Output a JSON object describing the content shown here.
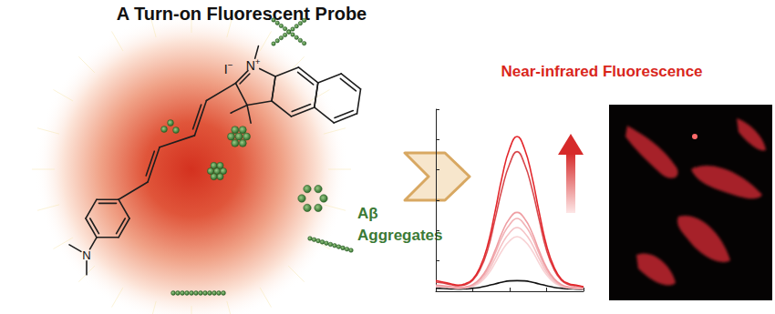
{
  "title": "A Turn-on Fluorescent Probe",
  "molecule": {
    "cation": "N",
    "cation_charge": "+",
    "counter_ion": "I",
    "counter_ion_charge": "−",
    "amine": "N"
  },
  "target_label": [
    "Aβ",
    "Aggregates"
  ],
  "output_label": "Near-infrared Fluorescence",
  "chart_data": {
    "type": "line",
    "x": [
      0,
      1,
      2,
      3,
      4,
      5,
      6,
      7,
      8,
      9,
      10,
      11,
      12,
      13,
      14,
      15,
      16,
      17,
      18,
      19,
      20
    ],
    "xlim": [
      0,
      20
    ],
    "xticks": [
      0,
      5,
      10,
      15,
      20
    ],
    "ylim": [
      0,
      6
    ],
    "yticks": [
      0,
      1,
      2,
      3,
      4,
      5,
      6
    ],
    "grid": false,
    "tick_labels": false,
    "series": [
      {
        "color": "#e3262b",
        "values": [
          0.35,
          0.3,
          0.25,
          0.2,
          0.25,
          0.4,
          0.8,
          1.5,
          2.6,
          3.8,
          4.7,
          5.1,
          4.7,
          3.8,
          2.6,
          1.5,
          0.8,
          0.4,
          0.25,
          0.2,
          0.15
        ]
      },
      {
        "color": "#d8474c",
        "values": [
          0.3,
          0.27,
          0.22,
          0.18,
          0.22,
          0.36,
          0.72,
          1.35,
          2.35,
          3.4,
          4.2,
          4.6,
          4.2,
          3.4,
          2.35,
          1.35,
          0.72,
          0.36,
          0.22,
          0.18,
          0.14
        ]
      },
      {
        "color": "#ef9ea3",
        "values": [
          0.2,
          0.18,
          0.15,
          0.12,
          0.14,
          0.22,
          0.42,
          0.78,
          1.33,
          1.95,
          2.4,
          2.6,
          2.4,
          1.95,
          1.33,
          0.78,
          0.42,
          0.22,
          0.14,
          0.12,
          0.1
        ]
      },
      {
        "color": "#f2b2b6",
        "values": [
          0.18,
          0.16,
          0.14,
          0.11,
          0.13,
          0.2,
          0.39,
          0.72,
          1.23,
          1.8,
          2.2,
          2.4,
          2.2,
          1.8,
          1.23,
          0.72,
          0.39,
          0.2,
          0.13,
          0.11,
          0.09
        ]
      },
      {
        "color": "#f5c3c6",
        "values": [
          0.16,
          0.15,
          0.13,
          0.1,
          0.12,
          0.18,
          0.34,
          0.63,
          1.07,
          1.57,
          1.93,
          2.1,
          1.93,
          1.57,
          1.07,
          0.63,
          0.34,
          0.18,
          0.12,
          0.1,
          0.08
        ]
      },
      {
        "color": "#f8d3d5",
        "values": [
          0.15,
          0.14,
          0.12,
          0.1,
          0.11,
          0.16,
          0.29,
          0.54,
          0.92,
          1.35,
          1.66,
          1.8,
          1.66,
          1.35,
          0.92,
          0.54,
          0.29,
          0.16,
          0.11,
          0.09,
          0.08
        ]
      },
      {
        "color": "#111111",
        "values": [
          0.1,
          0.09,
          0.08,
          0.07,
          0.08,
          0.1,
          0.13,
          0.18,
          0.24,
          0.3,
          0.34,
          0.35,
          0.34,
          0.3,
          0.24,
          0.18,
          0.13,
          0.1,
          0.08,
          0.07,
          0.06
        ]
      }
    ]
  }
}
